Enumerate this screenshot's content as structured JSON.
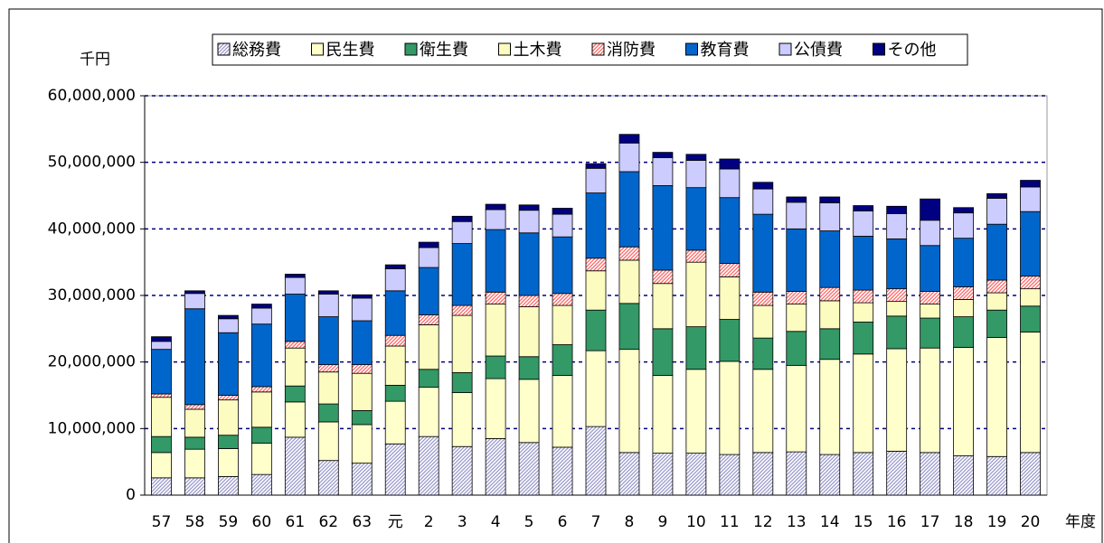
{
  "chart_data": {
    "type": "stacked_bar",
    "y_unit_label": "千円",
    "x_label": "年度",
    "categories": [
      "57",
      "58",
      "59",
      "60",
      "61",
      "62",
      "63",
      "元",
      "2",
      "3",
      "4",
      "5",
      "6",
      "7",
      "8",
      "9",
      "10",
      "11",
      "12",
      "13",
      "14",
      "15",
      "16",
      "17",
      "18",
      "19",
      "20"
    ],
    "ylim": [
      0,
      60000000
    ],
    "yticks": [
      0,
      {
        "value": 10000000,
        "label": "10,000,000"
      },
      {
        "value": 20000000,
        "label": "20,000,000"
      },
      {
        "value": 30000000,
        "label": "30,000,000"
      },
      {
        "value": 40000000,
        "label": "40,000,000"
      },
      {
        "value": 50000000,
        "label": "50,000,000"
      },
      {
        "value": 60000000,
        "label": "60,000,000"
      }
    ],
    "grid": true,
    "legend": "top",
    "series": [
      {
        "name": "総務費",
        "color": "#9999cc",
        "hatch": true,
        "values": [
          2600000,
          2600000,
          2800000,
          3100000,
          8700000,
          5200000,
          4800000,
          7700000,
          8800000,
          7300000,
          8500000,
          7900000,
          7200000,
          10300000,
          6400000,
          6300000,
          6300000,
          6100000,
          6400000,
          6500000,
          6100000,
          6400000,
          6600000,
          6400000,
          5900000,
          5800000,
          6400000
        ]
      },
      {
        "name": "民生費",
        "color": "#ffffcc",
        "values": [
          3800000,
          4300000,
          4200000,
          4700000,
          5300000,
          5800000,
          5800000,
          6400000,
          7400000,
          8100000,
          9000000,
          9500000,
          10800000,
          11400000,
          15500000,
          11700000,
          12600000,
          14000000,
          12500000,
          13000000,
          14300000,
          14800000,
          15400000,
          15700000,
          16300000,
          17900000,
          18100000
        ]
      },
      {
        "name": "衛生費",
        "color": "#339966",
        "values": [
          2400000,
          1800000,
          2000000,
          2400000,
          2400000,
          2700000,
          2100000,
          2400000,
          2700000,
          3000000,
          3400000,
          3400000,
          4600000,
          6100000,
          6900000,
          7000000,
          6400000,
          6300000,
          4700000,
          5100000,
          4600000,
          4800000,
          4900000,
          4500000,
          4600000,
          4100000,
          3900000
        ]
      },
      {
        "name": "土木費",
        "color": "#fcfcc0",
        "values": [
          5900000,
          4200000,
          5300000,
          5300000,
          5700000,
          4800000,
          5600000,
          5900000,
          6700000,
          8600000,
          7800000,
          7500000,
          5900000,
          5900000,
          6500000,
          6800000,
          9700000,
          6400000,
          4900000,
          4100000,
          4200000,
          2900000,
          2200000,
          2100000,
          2600000,
          2600000,
          2600000
        ]
      },
      {
        "name": "消防費",
        "color": "#ff6666",
        "hatch": true,
        "values": [
          500000,
          700000,
          700000,
          800000,
          1000000,
          1100000,
          1300000,
          1600000,
          1500000,
          1500000,
          1800000,
          1700000,
          1800000,
          1900000,
          2000000,
          2000000,
          1800000,
          2000000,
          2000000,
          1900000,
          2000000,
          1900000,
          1900000,
          1900000,
          1900000,
          1900000,
          1900000
        ]
      },
      {
        "name": "教育費",
        "color": "#0066cc",
        "values": [
          6700000,
          14400000,
          9400000,
          9400000,
          7100000,
          7200000,
          6600000,
          6700000,
          7100000,
          9300000,
          9400000,
          9400000,
          8500000,
          9800000,
          11300000,
          12700000,
          9400000,
          9900000,
          11700000,
          9400000,
          8500000,
          8100000,
          7500000,
          6900000,
          7300000,
          8400000,
          9700000
        ]
      },
      {
        "name": "公債費",
        "color": "#ccccff",
        "values": [
          1200000,
          2300000,
          2100000,
          2400000,
          2500000,
          3400000,
          3400000,
          3300000,
          3000000,
          3300000,
          3000000,
          3400000,
          3400000,
          3700000,
          4300000,
          4200000,
          4100000,
          4300000,
          3800000,
          4000000,
          4200000,
          3800000,
          3800000,
          3800000,
          3800000,
          3900000,
          3700000
        ]
      },
      {
        "name": "その他",
        "color": "#000080",
        "values": [
          700000,
          400000,
          500000,
          600000,
          500000,
          500000,
          500000,
          600000,
          800000,
          800000,
          800000,
          800000,
          900000,
          700000,
          1300000,
          800000,
          900000,
          1500000,
          1000000,
          800000,
          900000,
          800000,
          1100000,
          3200000,
          800000,
          700000,
          1000000
        ]
      }
    ]
  }
}
